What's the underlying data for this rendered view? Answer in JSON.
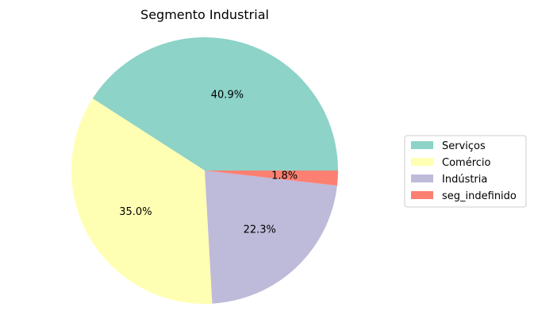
{
  "chart_data": {
    "type": "pie",
    "title": "Segmento Industrial",
    "categories": [
      "Serviços",
      "Comércio",
      "Indústria",
      "seg_indefinido"
    ],
    "values": [
      40.9,
      35.0,
      22.3,
      1.8
    ],
    "labels": [
      "40.9%",
      "35.0%",
      "22.3%",
      "1.8%"
    ],
    "colors": [
      "#8dd3c7",
      "#ffffb3",
      "#bebada",
      "#fb8072"
    ],
    "start_angle_deg": 0,
    "direction": "counterclockwise",
    "legend_position": "right"
  }
}
